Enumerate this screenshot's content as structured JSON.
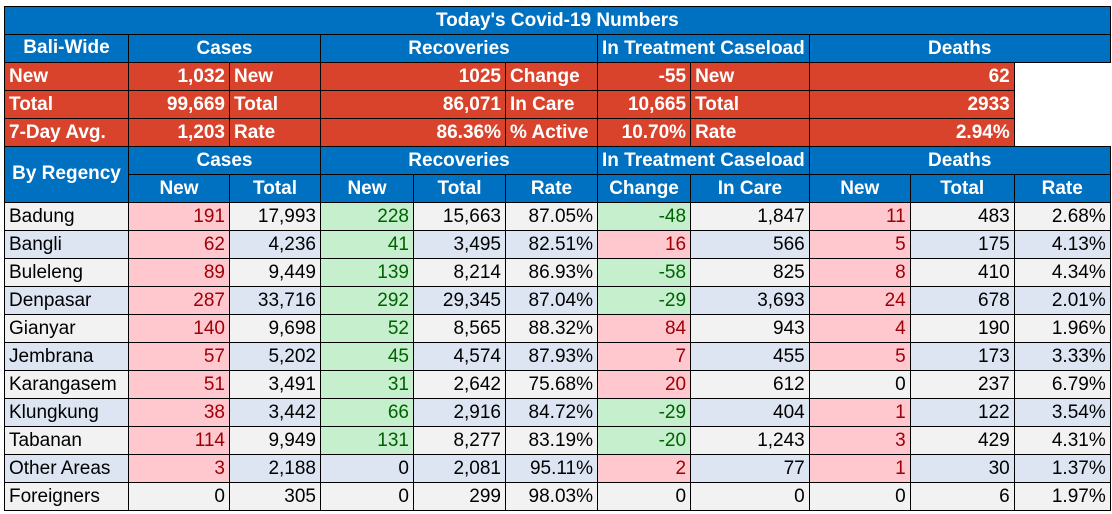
{
  "title": "Today's Covid-19 Numbers",
  "bali_wide": {
    "label": "Bali-Wide",
    "groups": [
      "Cases",
      "Recoveries",
      "In Treatment Caseload",
      "Deaths"
    ],
    "rows": [
      [
        [
          "New",
          "1,032"
        ],
        [
          "New",
          "1025"
        ],
        [
          "Change",
          "-55"
        ],
        [
          "New",
          "62"
        ]
      ],
      [
        [
          "Total",
          "99,669"
        ],
        [
          "Total",
          "86,071"
        ],
        [
          "In Care",
          "10,665"
        ],
        [
          "Total",
          "2933"
        ]
      ],
      [
        [
          "7-Day Avg.",
          "1,203"
        ],
        [
          "Rate",
          "86.36%"
        ],
        [
          "% Active",
          "10.70%"
        ],
        [
          "Rate",
          "2.94%"
        ]
      ]
    ]
  },
  "by_regency": {
    "label": "By Regency",
    "groups": [
      "Cases",
      "Recoveries",
      "In Treatment Caseload",
      "Deaths"
    ],
    "columns": [
      "New",
      "Total",
      "New",
      "Total",
      "Rate",
      "Change",
      "In Care",
      "New",
      "Total",
      "Rate"
    ],
    "rows": [
      {
        "name": "Badung",
        "vals": [
          "191",
          "17,993",
          "228",
          "15,663",
          "87.05%",
          "-48",
          "1,847",
          "11",
          "483",
          "2.68%"
        ]
      },
      {
        "name": "Bangli",
        "vals": [
          "62",
          "4,236",
          "41",
          "3,495",
          "82.51%",
          "16",
          "566",
          "5",
          "175",
          "4.13%"
        ]
      },
      {
        "name": "Buleleng",
        "vals": [
          "89",
          "9,449",
          "139",
          "8,214",
          "86.93%",
          "-58",
          "825",
          "8",
          "410",
          "4.34%"
        ]
      },
      {
        "name": "Denpasar",
        "vals": [
          "287",
          "33,716",
          "292",
          "29,345",
          "87.04%",
          "-29",
          "3,693",
          "24",
          "678",
          "2.01%"
        ]
      },
      {
        "name": "Gianyar",
        "vals": [
          "140",
          "9,698",
          "52",
          "8,565",
          "88.32%",
          "84",
          "943",
          "4",
          "190",
          "1.96%"
        ]
      },
      {
        "name": "Jembrana",
        "vals": [
          "57",
          "5,202",
          "45",
          "4,574",
          "87.93%",
          "7",
          "455",
          "5",
          "173",
          "3.33%"
        ]
      },
      {
        "name": "Karangasem",
        "vals": [
          "51",
          "3,491",
          "31",
          "2,642",
          "75.68%",
          "20",
          "612",
          "0",
          "237",
          "6.79%"
        ]
      },
      {
        "name": "Klungkung",
        "vals": [
          "38",
          "3,442",
          "66",
          "2,916",
          "84.72%",
          "-29",
          "404",
          "1",
          "122",
          "3.54%"
        ]
      },
      {
        "name": "Tabanan",
        "vals": [
          "114",
          "9,949",
          "131",
          "8,277",
          "83.19%",
          "-20",
          "1,243",
          "3",
          "429",
          "4.31%"
        ]
      },
      {
        "name": "Other Areas",
        "vals": [
          "3",
          "2,188",
          "0",
          "2,081",
          "95.11%",
          "2",
          "77",
          "1",
          "30",
          "1.37%"
        ]
      },
      {
        "name": "Foreigners",
        "vals": [
          "0",
          "305",
          "0",
          "299",
          "98.03%",
          "0",
          "0",
          "0",
          "6",
          "1.97%"
        ]
      }
    ]
  },
  "colors": {
    "header_blue": "#0070c0",
    "summary_red": "#d9432c",
    "increase_fill": "#ffc7ce",
    "increase_text": "#9c0006",
    "decrease_fill": "#c6efce",
    "decrease_text": "#006100"
  }
}
